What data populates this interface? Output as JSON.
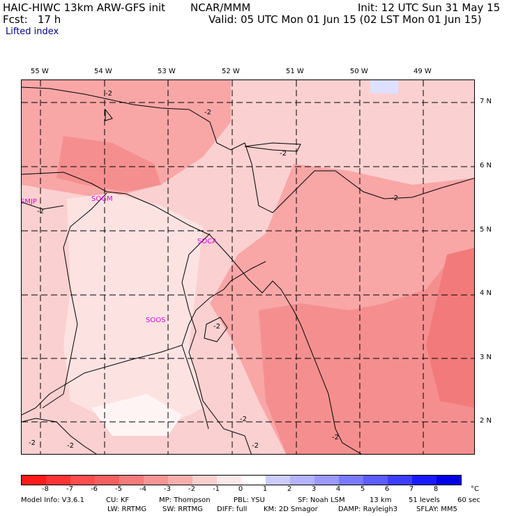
{
  "header": {
    "model_title": "HAIC-HIWC 13km ARW-GFS init",
    "agency": "NCAR/MMM",
    "init": "Init: 12 UTC Sun 31 May 15",
    "fcst": "Fcst:   17 h",
    "valid": "Valid: 05 UTC Mon 01 Jun 15 (02 LST Mon 01 Jun 15)",
    "field": "Lifted index"
  },
  "map": {
    "lon_labels": [
      "55 W",
      "54 W",
      "53 W",
      "52 W",
      "51 W",
      "50 W",
      "49 W"
    ],
    "lat_labels": [
      "7 N",
      "6 N",
      "5 N",
      "4 N",
      "3 N",
      "2 N"
    ],
    "stations": [
      "SMJP",
      "SOGM",
      "SOCA",
      "SOOS"
    ],
    "contour_labels": [
      "-2",
      "-2",
      "-2",
      "-2",
      "-2",
      "-2",
      "-2",
      "-2",
      "-2",
      "-2",
      "-2"
    ],
    "contour_value": -2
  },
  "colorbar": {
    "unit": "°C",
    "labels": [
      "-8",
      "-7",
      "-6",
      "-5",
      "-4",
      "-3",
      "-2",
      "-1",
      "0",
      "1",
      "2",
      "3",
      "4",
      "5",
      "6",
      "7",
      "8"
    ],
    "colors": [
      "#ff1a1a",
      "#ff3333",
      "#ff4d4d",
      "#f55f5f",
      "#f57a7a",
      "#f79595",
      "#f9aeae",
      "#fbcfcf",
      "#fde8e8",
      "#ffffff",
      "#ccccff",
      "#b3b3ff",
      "#9999ff",
      "#7a7aff",
      "#5c5cff",
      "#3d3dff",
      "#1a1aff",
      "#0000e6"
    ]
  },
  "footer": {
    "line1": {
      "model_info": "Model Info: V3.6.1",
      "cu": "CU: KF",
      "mp": "MP: Thompson",
      "pbl": "PBL: YSU",
      "sf": "SF: Noah LSM",
      "res": "13 km",
      "levels": "51 levels",
      "dt": "60 sec"
    },
    "line2": {
      "lw": "LW: RRTMG",
      "sw": "SW: RRTMG",
      "diff": "DIFF: full",
      "km": "KM: 2D Smagor",
      "damp": "DAMP: Rayleigh3",
      "sflay": "SFLAY: MM5"
    }
  }
}
